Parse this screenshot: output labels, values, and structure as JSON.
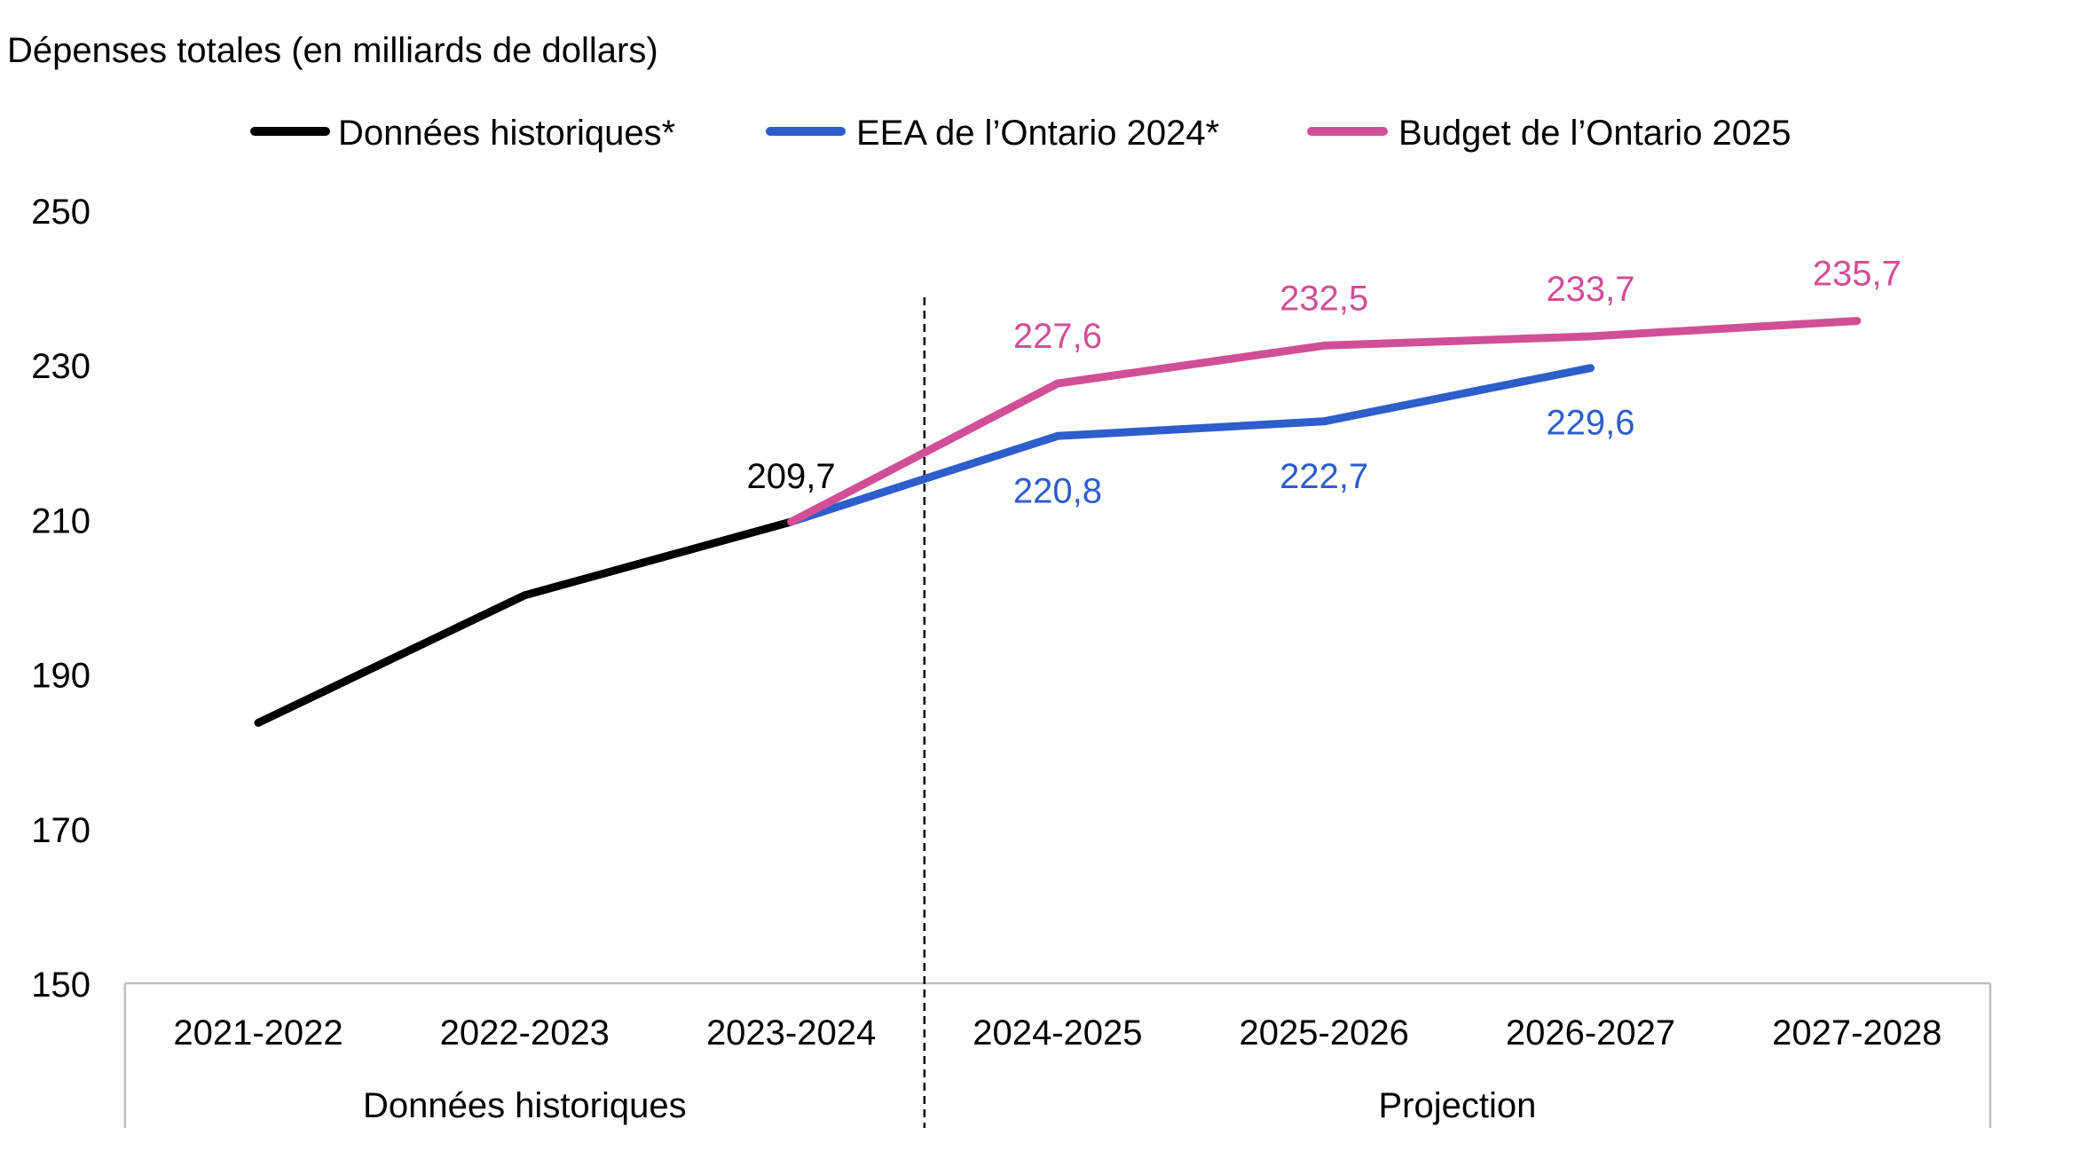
{
  "chart_data": {
    "type": "line",
    "ylabel": "Dépenses totales (en milliards de dollars)",
    "xlabel": "",
    "categories": [
      "2021-2022",
      "2022-2023",
      "2023-2024",
      "2024-2025",
      "2025-2026",
      "2026-2027",
      "2027-2028"
    ],
    "x_groups": [
      {
        "label": "Données historiques",
        "categories": [
          "2021-2022",
          "2022-2023",
          "2023-2024"
        ]
      },
      {
        "label": "Projection",
        "categories": [
          "2024-2025",
          "2025-2026",
          "2026-2027",
          "2027-2028"
        ]
      }
    ],
    "ylim": [
      150,
      250
    ],
    "yticks": [
      150,
      170,
      190,
      210,
      230,
      250
    ],
    "grid": false,
    "legend": "top",
    "axis_color": "#BFBFBF",
    "series": [
      {
        "name": "Données historiques*",
        "color": "#000000",
        "values": [
          183.7,
          200.2,
          209.7,
          null,
          null,
          null,
          null
        ],
        "data_labels": [
          null,
          null,
          "209,7",
          null,
          null,
          null,
          null
        ]
      },
      {
        "name": "EEA de l’Ontario 2024*",
        "color": "#2E5DCC",
        "values": [
          null,
          null,
          209.7,
          220.8,
          222.7,
          229.6,
          null
        ],
        "data_labels": [
          null,
          null,
          null,
          "220,8",
          "222,7",
          "229,6",
          null
        ]
      },
      {
        "name": "Budget de l’Ontario 2025",
        "color": "#D14F96",
        "values": [
          null,
          null,
          209.7,
          227.6,
          232.5,
          233.7,
          235.7
        ],
        "data_labels": [
          null,
          null,
          null,
          "227,6",
          "232,5",
          "233,7",
          "235,7"
        ]
      }
    ]
  }
}
